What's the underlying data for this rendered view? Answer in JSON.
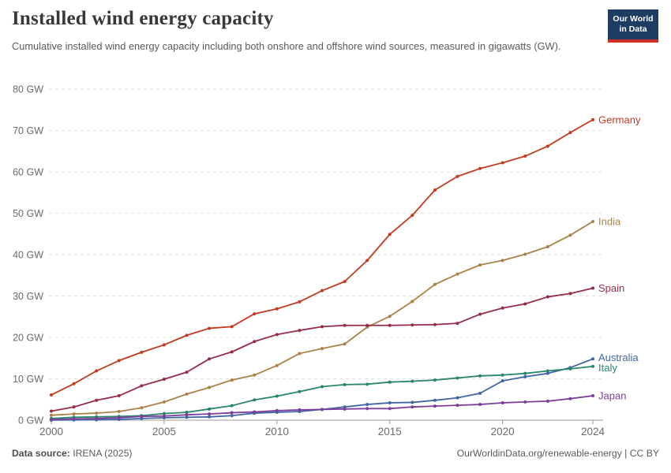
{
  "header": {
    "title": "Installed wind energy capacity",
    "subtitle": "Cumulative installed wind energy capacity including both onshore and offshore wind sources, measured in gigawatts (GW).",
    "logo": {
      "line1": "Our World",
      "line2": "in Data",
      "bg_color": "#1D3D63",
      "accent_color": "#CF2E24"
    }
  },
  "chart_data": {
    "type": "line",
    "title": "Installed wind energy capacity",
    "xlabel": "",
    "ylabel": "GW",
    "x": [
      2000,
      2001,
      2002,
      2003,
      2004,
      2005,
      2006,
      2007,
      2008,
      2009,
      2010,
      2011,
      2012,
      2013,
      2014,
      2015,
      2016,
      2017,
      2018,
      2019,
      2020,
      2021,
      2022,
      2023,
      2024
    ],
    "x_ticks": [
      2000,
      2005,
      2010,
      2015,
      2020,
      2024
    ],
    "y_ticks": [
      0,
      10,
      20,
      30,
      40,
      50,
      60,
      70,
      80
    ],
    "y_tick_suffix": " GW",
    "ylim": [
      0,
      80
    ],
    "grid": "horizontal-dashed",
    "legend_position": "right-end-of-line",
    "markers": true,
    "axis_color": "#999999",
    "grid_color": "#dddddd",
    "tick_label_color": "#6b6b6b",
    "series": [
      {
        "name": "Germany",
        "color": "#C43A1F",
        "values": [
          6.1,
          8.8,
          11.9,
          14.4,
          16.4,
          18.2,
          20.5,
          22.2,
          22.6,
          25.7,
          26.9,
          28.6,
          31.3,
          33.5,
          38.6,
          44.9,
          49.5,
          55.6,
          58.9,
          60.8,
          62.2,
          63.8,
          66.2,
          69.5,
          72.6
        ]
      },
      {
        "name": "India",
        "color": "#AC8145",
        "values": [
          1.2,
          1.5,
          1.7,
          2.1,
          3.0,
          4.4,
          6.3,
          7.9,
          9.7,
          10.9,
          13.2,
          16.1,
          17.3,
          18.4,
          22.5,
          25.1,
          28.7,
          32.8,
          35.3,
          37.5,
          38.6,
          40.1,
          41.9,
          44.7,
          48.0
        ]
      },
      {
        "name": "Spain",
        "color": "#962D46",
        "values": [
          2.2,
          3.2,
          4.8,
          5.9,
          8.3,
          9.9,
          11.6,
          14.8,
          16.5,
          19.0,
          20.7,
          21.7,
          22.6,
          22.9,
          22.9,
          22.9,
          23.0,
          23.1,
          23.4,
          25.6,
          27.1,
          28.1,
          29.8,
          30.6,
          31.9
        ]
      },
      {
        "name": "Australia",
        "color": "#4166A5",
        "values": [
          0.03,
          0.07,
          0.1,
          0.2,
          0.4,
          0.6,
          0.7,
          0.8,
          1.1,
          1.7,
          1.9,
          2.1,
          2.6,
          3.2,
          3.8,
          4.2,
          4.3,
          4.8,
          5.4,
          6.5,
          9.5,
          10.5,
          11.3,
          12.7,
          14.8
        ]
      },
      {
        "name": "Italy",
        "color": "#28876B",
        "values": [
          0.4,
          0.7,
          0.8,
          0.9,
          1.1,
          1.6,
          1.9,
          2.7,
          3.5,
          4.9,
          5.8,
          6.9,
          8.1,
          8.6,
          8.7,
          9.2,
          9.4,
          9.7,
          10.2,
          10.7,
          10.9,
          11.3,
          11.9,
          12.4,
          13.0
        ]
      },
      {
        "name": "Japan",
        "color": "#7D3E9B",
        "values": [
          0.14,
          0.3,
          0.4,
          0.6,
          0.9,
          1.0,
          1.3,
          1.5,
          1.8,
          2.0,
          2.3,
          2.5,
          2.6,
          2.7,
          2.8,
          2.8,
          3.2,
          3.4,
          3.6,
          3.8,
          4.2,
          4.4,
          4.6,
          5.2,
          5.9
        ]
      }
    ]
  },
  "footer": {
    "source_label": "Data source:",
    "source_value": " IRENA (2025)",
    "right_text": "OurWorldinData.org/renewable-energy | CC BY"
  }
}
